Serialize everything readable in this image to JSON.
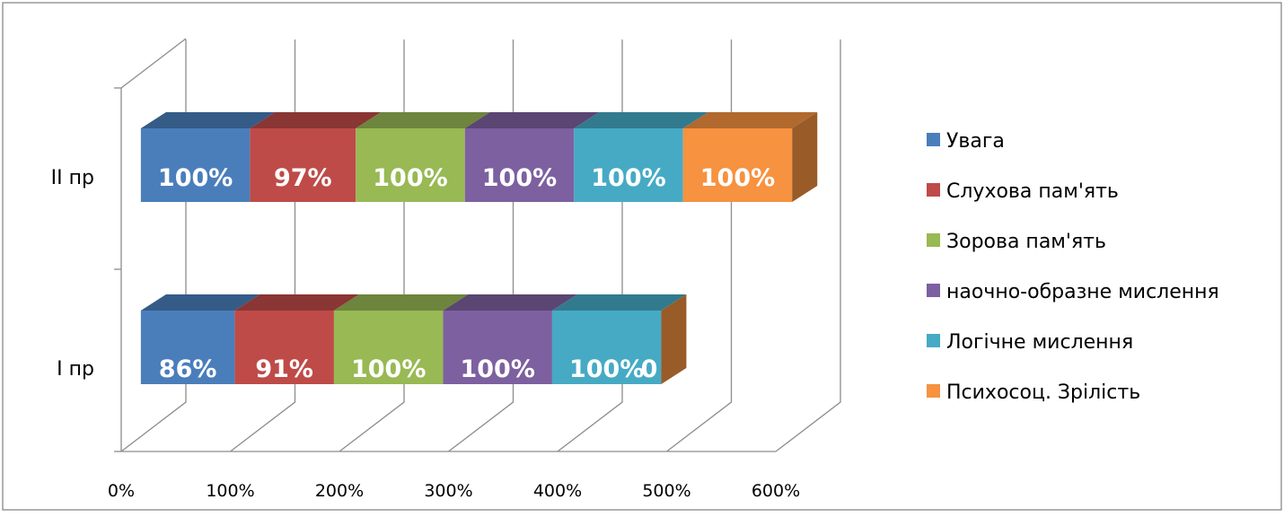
{
  "chart_data": {
    "type": "bar",
    "orientation": "horizontal",
    "stacked": true,
    "three_d": true,
    "categories": [
      "I пр",
      "II пр"
    ],
    "series": [
      {
        "name": "Увага",
        "values": [
          86,
          100
        ],
        "labels": [
          "86%",
          "100%"
        ],
        "color": "#4A7EBB"
      },
      {
        "name": "Слухова пам'ять",
        "values": [
          91,
          97
        ],
        "labels": [
          "91%",
          "97%"
        ],
        "color": "#BE4B48"
      },
      {
        "name": "Зорова пам'ять",
        "values": [
          100,
          100
        ],
        "labels": [
          "100%",
          "100%"
        ],
        "color": "#98B954"
      },
      {
        "name": "наочно-образне мислення",
        "values": [
          100,
          100
        ],
        "labels": [
          "100%",
          "100%"
        ],
        "color": "#7D60A0"
      },
      {
        "name": "Логічне мислення",
        "values": [
          100,
          100
        ],
        "labels": [
          "100%",
          "100%"
        ],
        "color": "#46AAC5"
      },
      {
        "name": "Психосоц. Зрілість",
        "values": [
          0,
          100
        ],
        "labels": [
          "0",
          "100%"
        ],
        "color": "#F69240"
      }
    ],
    "x_ticks": [
      "0%",
      "100%",
      "200%",
      "300%",
      "400%",
      "500%",
      "600%"
    ],
    "xlim": [
      0,
      600
    ],
    "grid": true,
    "legend": "right",
    "title": "",
    "xlabel": "",
    "ylabel": ""
  }
}
